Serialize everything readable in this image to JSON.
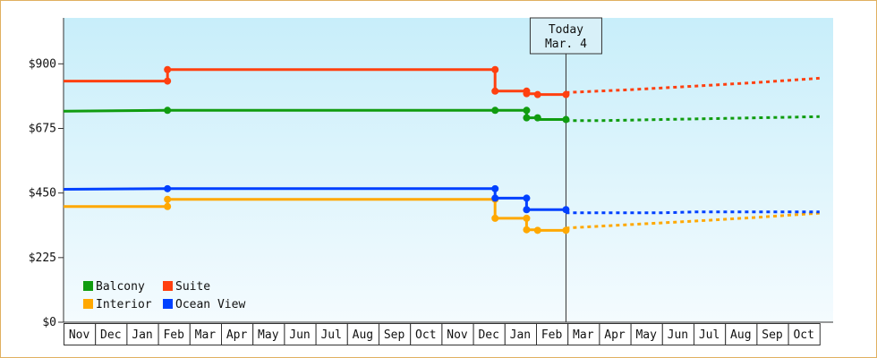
{
  "chart_data": {
    "type": "line",
    "x_categories": [
      "Nov",
      "Dec",
      "Jan",
      "Feb",
      "Mar",
      "Apr",
      "May",
      "Jun",
      "Jul",
      "Aug",
      "Sep",
      "Oct",
      "Nov",
      "Dec",
      "Jan",
      "Feb",
      "Mar",
      "Apr",
      "May",
      "Jun",
      "Jul",
      "Aug",
      "Sep",
      "Oct"
    ],
    "y_ticks": [
      "$0",
      "$225",
      "$450",
      "$675",
      "$900"
    ],
    "y_tick_values": [
      0,
      225,
      450,
      675,
      900
    ],
    "ylim": [
      0,
      1060
    ],
    "grid": false,
    "legend_position": "bottom-left",
    "today": {
      "line1": "Today",
      "line2": "Mar. 4",
      "x": 15.95
    },
    "series": [
      {
        "name": "Balcony",
        "color": "#109c10",
        "points": [
          [
            0,
            735
          ],
          [
            3.3,
            738
          ],
          [
            13.7,
            738
          ],
          [
            14.7,
            738
          ],
          [
            14.7,
            712
          ],
          [
            15.05,
            712
          ],
          [
            15.05,
            706
          ],
          [
            15.95,
            706
          ],
          [
            15.95,
            702
          ]
        ],
        "markers": [
          [
            3.3,
            738
          ],
          [
            13.7,
            738
          ],
          [
            14.7,
            738
          ],
          [
            14.7,
            712
          ],
          [
            15.05,
            712
          ],
          [
            15.95,
            706
          ]
        ],
        "forecast": [
          [
            15.95,
            702
          ],
          [
            17,
            702
          ],
          [
            18,
            704
          ],
          [
            19,
            706
          ],
          [
            20,
            708
          ],
          [
            21,
            710
          ],
          [
            22,
            712
          ],
          [
            23,
            714
          ],
          [
            24,
            716
          ]
        ]
      },
      {
        "name": "Suite",
        "color": "#ff4010",
        "points": [
          [
            0,
            840
          ],
          [
            3.3,
            840
          ],
          [
            3.3,
            880
          ],
          [
            13.7,
            880
          ],
          [
            13.7,
            805
          ],
          [
            14.7,
            805
          ],
          [
            14.7,
            796
          ],
          [
            15.05,
            796
          ],
          [
            15.05,
            793
          ],
          [
            15.95,
            793
          ],
          [
            15.95,
            805
          ]
        ],
        "markers": [
          [
            3.3,
            840
          ],
          [
            3.3,
            880
          ],
          [
            13.7,
            880
          ],
          [
            13.7,
            805
          ],
          [
            14.7,
            805
          ],
          [
            14.7,
            796
          ],
          [
            15.05,
            793
          ],
          [
            15.95,
            793
          ]
        ],
        "forecast": [
          [
            15.95,
            800
          ],
          [
            18,
            810
          ],
          [
            20,
            822
          ],
          [
            22,
            835
          ],
          [
            24,
            850
          ]
        ]
      },
      {
        "name": "Interior",
        "color": "#ffa800",
        "points": [
          [
            0,
            403
          ],
          [
            3.3,
            403
          ],
          [
            3.3,
            428
          ],
          [
            13.7,
            428
          ],
          [
            13.7,
            362
          ],
          [
            14.7,
            362
          ],
          [
            14.7,
            322
          ],
          [
            15.05,
            322
          ],
          [
            15.05,
            320
          ],
          [
            15.95,
            320
          ],
          [
            15.95,
            330
          ]
        ],
        "markers": [
          [
            3.3,
            403
          ],
          [
            3.3,
            428
          ],
          [
            13.7,
            428
          ],
          [
            13.7,
            362
          ],
          [
            14.7,
            362
          ],
          [
            14.7,
            322
          ],
          [
            15.05,
            320
          ],
          [
            15.95,
            320
          ]
        ],
        "forecast": [
          [
            15.95,
            328
          ],
          [
            18,
            340
          ],
          [
            20,
            352
          ],
          [
            22,
            365
          ],
          [
            24,
            380
          ]
        ]
      },
      {
        "name": "Ocean View",
        "color": "#0040ff",
        "points": [
          [
            0,
            463
          ],
          [
            3.3,
            465
          ],
          [
            13.7,
            465
          ],
          [
            13.7,
            432
          ],
          [
            14.7,
            432
          ],
          [
            14.7,
            392
          ],
          [
            15.95,
            392
          ],
          [
            15.95,
            385
          ]
        ],
        "markers": [
          [
            3.3,
            465
          ],
          [
            13.7,
            465
          ],
          [
            13.7,
            432
          ],
          [
            14.7,
            432
          ],
          [
            14.7,
            392
          ],
          [
            15.95,
            392
          ]
        ],
        "forecast": [
          [
            15.95,
            381
          ],
          [
            17,
            381
          ],
          [
            18,
            381
          ],
          [
            19,
            381
          ],
          [
            20,
            384
          ],
          [
            21,
            384
          ],
          [
            22,
            384
          ],
          [
            23,
            384
          ],
          [
            24,
            384
          ]
        ]
      }
    ],
    "legend": [
      {
        "name": "Balcony",
        "color": "#109c10"
      },
      {
        "name": "Suite",
        "color": "#ff4010"
      },
      {
        "name": "Interior",
        "color": "#ffa800"
      },
      {
        "name": "Ocean View",
        "color": "#0040ff"
      }
    ]
  }
}
